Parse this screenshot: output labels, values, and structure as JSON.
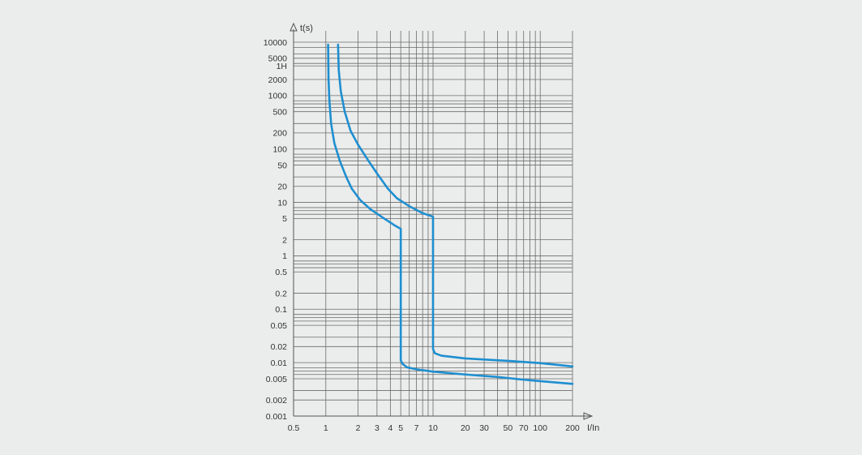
{
  "chart_data": {
    "type": "line",
    "xscale": "log",
    "yscale": "log",
    "xlabel": "I/In",
    "ylabel": "t(s)",
    "xlim": [
      0.5,
      200
    ],
    "ylim": [
      0.001,
      10000
    ],
    "grid": true,
    "x_tick_labels": [
      {
        "value": 0.5,
        "label": "0.5"
      },
      {
        "value": 1,
        "label": "1"
      },
      {
        "value": 2,
        "label": "2"
      },
      {
        "value": 3,
        "label": "3"
      },
      {
        "value": 4,
        "label": "4"
      },
      {
        "value": 5,
        "label": "5"
      },
      {
        "value": 7,
        "label": "7"
      },
      {
        "value": 10,
        "label": "10"
      },
      {
        "value": 20,
        "label": "20"
      },
      {
        "value": 30,
        "label": "30"
      },
      {
        "value": 50,
        "label": "50"
      },
      {
        "value": 70,
        "label": "70"
      },
      {
        "value": 100,
        "label": "100"
      },
      {
        "value": 200,
        "label": "200"
      }
    ],
    "y_tick_labels": [
      {
        "value": 10000,
        "label": "10000"
      },
      {
        "value": 5000,
        "label": "5000"
      },
      {
        "value": 3600,
        "label": "1H"
      },
      {
        "value": 2000,
        "label": "2000"
      },
      {
        "value": 1000,
        "label": "1000"
      },
      {
        "value": 500,
        "label": "500"
      },
      {
        "value": 200,
        "label": "200"
      },
      {
        "value": 100,
        "label": "100"
      },
      {
        "value": 50,
        "label": "50"
      },
      {
        "value": 20,
        "label": "20"
      },
      {
        "value": 10,
        "label": "10"
      },
      {
        "value": 5,
        "label": "5"
      },
      {
        "value": 2,
        "label": "2"
      },
      {
        "value": 1,
        "label": "1"
      },
      {
        "value": 0.5,
        "label": "0.5"
      },
      {
        "value": 0.2,
        "label": "0.2"
      },
      {
        "value": 0.1,
        "label": "0.1"
      },
      {
        "value": 0.05,
        "label": "0.05"
      },
      {
        "value": 0.02,
        "label": "0.02"
      },
      {
        "value": 0.01,
        "label": "0.01"
      },
      {
        "value": 0.005,
        "label": "0.005"
      },
      {
        "value": 0.002,
        "label": "0.002"
      },
      {
        "value": 0.001,
        "label": "0.001"
      }
    ],
    "x_grid": [
      1,
      2,
      3,
      4,
      5,
      6,
      7,
      8,
      9,
      10,
      20,
      30,
      40,
      50,
      60,
      70,
      80,
      90,
      100,
      200
    ],
    "y_grid": [
      10000,
      8000,
      6000,
      5000,
      4000,
      3600,
      2000,
      1000,
      800,
      700,
      600,
      500,
      300,
      200,
      100,
      80,
      70,
      60,
      50,
      30,
      20,
      10,
      8,
      7,
      6,
      5,
      2,
      1,
      0.8,
      0.7,
      0.6,
      0.5,
      0.2,
      0.1,
      0.08,
      0.07,
      0.06,
      0.05,
      0.03,
      0.02,
      0.01,
      0.008,
      0.007,
      0.006,
      0.005,
      0.003,
      0.002,
      0.001
    ],
    "series": [
      {
        "color": "#1e8fd0",
        "points": [
          [
            1.05,
            9000
          ],
          [
            1.06,
            2000
          ],
          [
            1.08,
            800
          ],
          [
            1.12,
            300
          ],
          [
            1.2,
            130
          ],
          [
            1.35,
            60
          ],
          [
            1.55,
            30
          ],
          [
            1.75,
            18
          ],
          [
            2.1,
            11
          ],
          [
            2.6,
            7.5
          ],
          [
            3.5,
            5
          ],
          [
            4.5,
            3.6
          ],
          [
            5,
            3.2
          ],
          [
            5,
            0.011
          ],
          [
            5.2,
            0.0095
          ],
          [
            5.7,
            0.0082
          ],
          [
            7,
            0.0075
          ],
          [
            10,
            0.0068
          ],
          [
            20,
            0.006
          ],
          [
            40,
            0.0054
          ],
          [
            70,
            0.0048
          ],
          [
            100,
            0.0045
          ],
          [
            200,
            0.004
          ]
        ]
      },
      {
        "color": "#1e8fd0",
        "points": [
          [
            1.3,
            9000
          ],
          [
            1.32,
            3000
          ],
          [
            1.38,
            1200
          ],
          [
            1.5,
            500
          ],
          [
            1.7,
            220
          ],
          [
            2,
            120
          ],
          [
            2.5,
            60
          ],
          [
            3,
            35
          ],
          [
            3.8,
            18
          ],
          [
            4.6,
            12
          ],
          [
            6,
            8.5
          ],
          [
            8,
            6.3
          ],
          [
            10,
            5.4
          ],
          [
            10,
            0.018
          ],
          [
            10.4,
            0.015
          ],
          [
            12,
            0.0135
          ],
          [
            20,
            0.012
          ],
          [
            50,
            0.0108
          ],
          [
            100,
            0.0098
          ],
          [
            200,
            0.0085
          ]
        ]
      }
    ]
  }
}
